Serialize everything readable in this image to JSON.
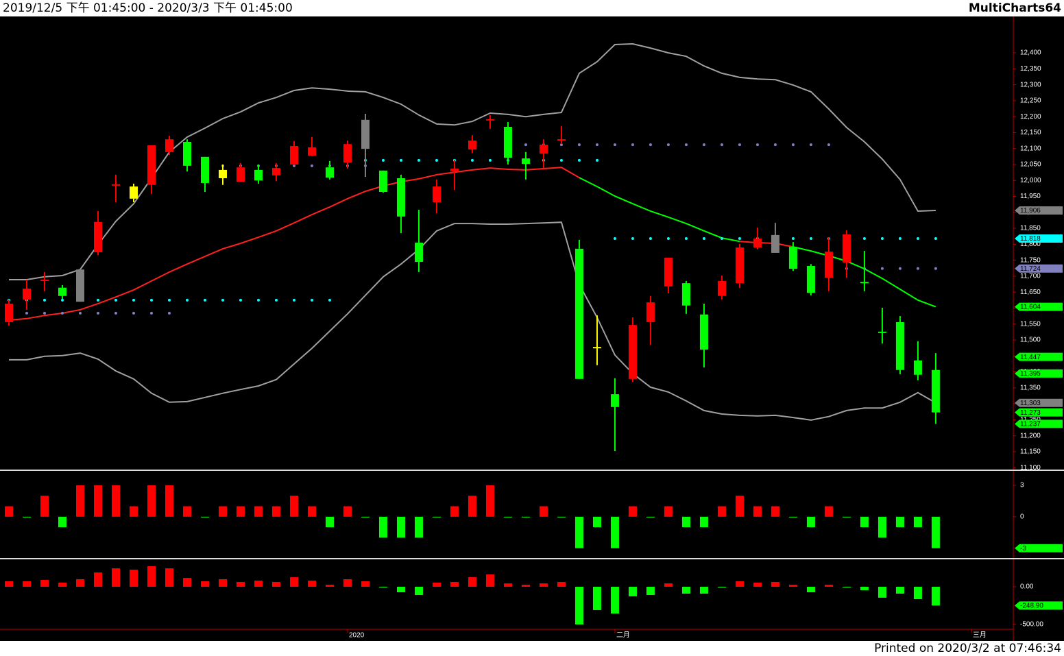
{
  "header": {
    "range": "2019/12/5 下午 01:45:00 - 2020/3/3 下午 01:45:00",
    "app": "MultiCharts64"
  },
  "footer": {
    "printed": "Printed on 2020/3/2 at 07:46:34"
  },
  "chart_data": [
    {
      "type": "candlestick",
      "xlim": [
        -0.5,
        56.35
      ],
      "xticks": [
        {
          "value": 19,
          "label": "2020"
        },
        {
          "value": 34,
          "label": "二月"
        },
        {
          "value": 54,
          "label": "三月"
        }
      ],
      "ylim": [
        11094,
        12514
      ],
      "yticks": [
        {
          "value": 11100,
          "label": "11,100"
        },
        {
          "value": 11150,
          "label": "11,150"
        },
        {
          "value": 11200,
          "label": "11,200"
        },
        {
          "value": 11250,
          "label": "11,250"
        },
        {
          "value": 11300,
          "label": "11,300"
        },
        {
          "value": 11350,
          "label": "11,350"
        },
        {
          "value": 11400,
          "label": "11,400"
        },
        {
          "value": 11450,
          "label": "11,450"
        },
        {
          "value": 11500,
          "label": "11,500"
        },
        {
          "value": 11550,
          "label": "11,550"
        },
        {
          "value": 11600,
          "label": "11,600"
        },
        {
          "value": 11650,
          "label": "11,650"
        },
        {
          "value": 11700,
          "label": "11,700"
        },
        {
          "value": 11750,
          "label": "11,750"
        },
        {
          "value": 11800,
          "label": "11,800"
        },
        {
          "value": 11850,
          "label": "11,850"
        },
        {
          "value": 11900,
          "label": "11,900"
        },
        {
          "value": 11950,
          "label": "11,950"
        },
        {
          "value": 12000,
          "label": "12,000"
        },
        {
          "value": 12050,
          "label": "12,050"
        },
        {
          "value": 12100,
          "label": "12,100"
        },
        {
          "value": 12150,
          "label": "12,150"
        },
        {
          "value": 12200,
          "label": "12,200"
        },
        {
          "value": 12250,
          "label": "12,250"
        },
        {
          "value": 12300,
          "label": "12,300"
        },
        {
          "value": 12350,
          "label": "12,350"
        },
        {
          "value": 12400,
          "label": "12,400"
        }
      ],
      "open": [
        11556,
        11627,
        11687,
        11664,
        11721,
        11775,
        11986,
        11981,
        11986,
        12089,
        12121,
        12074,
        12033,
        11996,
        12033,
        12016,
        12050,
        12078,
        12041,
        12056,
        12190,
        12031,
        12007,
        11805,
        11932,
        12028,
        12097,
        12190,
        12168,
        12069,
        12084,
        12127,
        11786,
        11476,
        11330,
        11378,
        11556,
        11668,
        11678,
        11580,
        11638,
        11678,
        11790,
        11829,
        11792,
        11732,
        11695,
        11743,
        11680,
        11524,
        11556,
        11436,
        11406
      ],
      "high": [
        11627,
        11689,
        11713,
        11672,
        11723,
        11904,
        12018,
        11990,
        12110,
        12140,
        12129,
        12074,
        12050,
        12054,
        12050,
        12054,
        12123,
        12136,
        12061,
        12125,
        12209,
        12031,
        12018,
        11908,
        12003,
        12065,
        12142,
        12205,
        12183,
        12089,
        12129,
        12170,
        11814,
        11577,
        11380,
        11571,
        11638,
        11758,
        11685,
        11614,
        11702,
        11801,
        11852,
        11867,
        11807,
        11738,
        11822,
        11844,
        11779,
        11601,
        11575,
        11496,
        11459
      ],
      "low": [
        11545,
        11595,
        11653,
        11629,
        11620,
        11766,
        11932,
        11932,
        11958,
        12080,
        12028,
        11964,
        11986,
        11996,
        11990,
        11998,
        12048,
        12076,
        12003,
        12037,
        12011,
        11962,
        11835,
        11713,
        11897,
        11970,
        12086,
        12162,
        12050,
        12003,
        12037,
        12114,
        11378,
        11421,
        11152,
        11369,
        11485,
        11646,
        11582,
        11414,
        11627,
        11663,
        11784,
        11773,
        11717,
        11640,
        11653,
        11695,
        11653,
        11489,
        11393,
        11374,
        11237
      ],
      "close": [
        11614,
        11661,
        11687,
        11638,
        11620,
        11870,
        11986,
        11943,
        12110,
        12129,
        12046,
        11992,
        12007,
        12041,
        12000,
        12039,
        12108,
        12104,
        12009,
        12114,
        12099,
        11964,
        11887,
        11745,
        11981,
        12037,
        12125,
        12190,
        12071,
        12052,
        12112,
        12127,
        11378,
        11476,
        11290,
        11547,
        11618,
        11758,
        11608,
        11470,
        11685,
        11790,
        11818,
        11773,
        11723,
        11648,
        11777,
        11831,
        11680,
        11524,
        11406,
        11391,
        11273
      ],
      "colors": [
        "#ff0000",
        "#ff0000",
        "#ff0000",
        "#00ff00",
        "#808080",
        "#ff0000",
        "#ff0000",
        "#ffff00",
        "#ff0000",
        "#ff0000",
        "#00ff00",
        "#00ff00",
        "#ffff00",
        "#ff0000",
        "#00ff00",
        "#ff0000",
        "#ff0000",
        "#ff0000",
        "#00ff00",
        "#ff0000",
        "#808080",
        "#00ff00",
        "#00ff00",
        "#00ff00",
        "#ff0000",
        "#ff0000",
        "#ff0000",
        "#ff0000",
        "#00ff00",
        "#00ff00",
        "#ff0000",
        "#ff0000",
        "#00ff00",
        "#ffff00",
        "#00ff00",
        "#ff0000",
        "#ff0000",
        "#ff0000",
        "#00ff00",
        "#00ff00",
        "#ff0000",
        "#ff0000",
        "#ff0000",
        "#808080",
        "#00ff00",
        "#00ff00",
        "#ff0000",
        "#ff0000",
        "#00ff00",
        "#00ff00",
        "#00ff00",
        "#00ff00",
        "#00ff00"
      ],
      "series": [
        {
          "color": "#a0a0a0",
          "style": "line",
          "values": [
            11689,
            11689,
            11698,
            11702,
            11721,
            11799,
            11872,
            11927,
            12007,
            12089,
            12136,
            12164,
            12194,
            12215,
            12243,
            12260,
            12282,
            12290,
            12286,
            12280,
            12278,
            12260,
            12239,
            12205,
            12177,
            12174,
            12185,
            12211,
            12207,
            12200,
            12207,
            12213,
            12336,
            12372,
            12426,
            12428,
            12415,
            12400,
            12389,
            12359,
            12336,
            12323,
            12318,
            12316,
            12299,
            12278,
            12224,
            12166,
            12121,
            12067,
            12003,
            11904,
            11906
          ]
        },
        {
          "color": "#a0a0a0",
          "style": "line",
          "values": [
            11438,
            11438,
            11449,
            11451,
            11459,
            11440,
            11403,
            11378,
            11333,
            11305,
            11307,
            11320,
            11333,
            11345,
            11356,
            11376,
            11425,
            11474,
            11528,
            11582,
            11640,
            11698,
            11738,
            11784,
            11842,
            11865,
            11865,
            11863,
            11863,
            11865,
            11867,
            11869,
            11674,
            11571,
            11453,
            11395,
            11352,
            11337,
            11309,
            11279,
            11268,
            11264,
            11262,
            11264,
            11257,
            11249,
            11260,
            11279,
            11287,
            11287,
            11305,
            11335,
            11303
          ]
        },
        {
          "color": "#ff2020",
          "style": "line",
          "values": [
            11562,
            11567,
            11577,
            11584,
            11595,
            11614,
            11635,
            11657,
            11685,
            11713,
            11738,
            11762,
            11786,
            11803,
            11822,
            11842,
            11867,
            11893,
            11917,
            11943,
            11966,
            11983,
            11996,
            12005,
            12018,
            12026,
            12033,
            12039,
            12035,
            12033,
            12037,
            12041,
            12009,
            null,
            null,
            null,
            null,
            null,
            null,
            null,
            null,
            11809,
            11805,
            11803,
            11792,
            null,
            null,
            null,
            null,
            null,
            null,
            null,
            null
          ]
        },
        {
          "color": "#00ff00",
          "style": "line",
          "values": [
            null,
            null,
            null,
            null,
            null,
            null,
            null,
            null,
            null,
            null,
            null,
            null,
            null,
            null,
            null,
            null,
            null,
            null,
            null,
            null,
            null,
            null,
            null,
            null,
            null,
            null,
            null,
            null,
            null,
            null,
            null,
            null,
            12009,
            11981,
            11951,
            11927,
            11904,
            11885,
            11865,
            11842,
            11820,
            11809,
            null,
            null,
            11792,
            11779,
            11764,
            11747,
            11723,
            11693,
            11659,
            11625,
            11604
          ]
        },
        {
          "color": "#00ffff",
          "style": "dots",
          "values": [
            11625,
            11625,
            11625,
            11625,
            11625,
            11625,
            11625,
            11625,
            11625,
            11625,
            11625,
            11625,
            11625,
            11625,
            11625,
            11625,
            11625,
            11625,
            11625,
            12063,
            12063,
            12063,
            12063,
            12063,
            12063,
            12063,
            12063,
            12063,
            12063,
            12063,
            12063,
            12063,
            12063,
            12063,
            11818,
            11818,
            11818,
            11818,
            11818,
            11818,
            11818,
            11818,
            11818,
            11818,
            11818,
            11818,
            11818,
            11818,
            11818,
            11818,
            11818,
            11818,
            11818
          ]
        },
        {
          "color": "#8080c0",
          "style": "dots",
          "values": [
            11584,
            11584,
            11584,
            11584,
            11584,
            11584,
            11584,
            11584,
            11584,
            11584,
            null,
            12046,
            12046,
            12046,
            12046,
            12046,
            12046,
            12046,
            12046,
            12046,
            12046,
            null,
            null,
            null,
            null,
            null,
            null,
            null,
            null,
            12112,
            12112,
            12112,
            12112,
            12112,
            12112,
            12112,
            12112,
            12112,
            12112,
            12112,
            12112,
            12112,
            12112,
            12112,
            12112,
            12112,
            12112,
            11724,
            11724,
            11724,
            11724,
            11724,
            11724
          ]
        }
      ],
      "markers": [
        {
          "value": 11906,
          "label": "11,906",
          "color": "#808080"
        },
        {
          "value": 11818,
          "label": "11,818",
          "color": "#00ffff"
        },
        {
          "value": 11724,
          "label": "11,724",
          "color": "#8080c0"
        },
        {
          "value": 11604,
          "label": "11,604",
          "color": "#00ff00"
        },
        {
          "value": 11447,
          "label": "11,447",
          "color": "#00ff00"
        },
        {
          "value": 11395,
          "label": "11,395",
          "color": "#00ff00"
        },
        {
          "value": 11303,
          "label": "11,303",
          "color": "#808080"
        },
        {
          "value": 11273,
          "label": "11,273",
          "color": "#00ff00"
        },
        {
          "value": 11237,
          "label": "11,237",
          "color": "#00ff00"
        }
      ]
    },
    {
      "type": "bar",
      "ylim": [
        -3.8,
        4.3
      ],
      "yticks": [
        3,
        0
      ],
      "up_color": "#ff0000",
      "down_color": "#00ff00",
      "values": [
        1,
        0,
        2,
        -1,
        3,
        3,
        3,
        1,
        3,
        3,
        1,
        0,
        1,
        1,
        1,
        1,
        2,
        1,
        -1,
        1,
        0,
        -2,
        -2,
        -2,
        0,
        1,
        2,
        3,
        0,
        0,
        1,
        0,
        -3,
        -1,
        -3,
        1,
        0,
        1,
        -1,
        -1,
        1,
        2,
        1,
        1,
        0,
        -1,
        1,
        0,
        -1,
        -2,
        -1,
        -1,
        -3
      ],
      "markers": [
        {
          "value": -3,
          "label": "-3",
          "color": "#00ff00"
        }
      ]
    },
    {
      "type": "bar",
      "ylim": [
        -555,
        355
      ],
      "yticks": [
        {
          "value": 0,
          "label": "0.00"
        },
        {
          "value": -500,
          "label": "-500.00"
        }
      ],
      "up_color": "#ff0000",
      "down_color": "#00ff00",
      "values": [
        73,
        73,
        91,
        55,
        100,
        190,
        245,
        227,
        273,
        245,
        118,
        73,
        100,
        64,
        82,
        64,
        127,
        82,
        27,
        100,
        73,
        -9,
        -73,
        -109,
        55,
        64,
        127,
        164,
        45,
        27,
        45,
        64,
        -500,
        -309,
        -355,
        -127,
        -109,
        45,
        -91,
        -91,
        -9,
        73,
        55,
        64,
        27,
        -73,
        27,
        -9,
        -45,
        -145,
        -91,
        -164,
        -248.9
      ],
      "markers": [
        {
          "value": -248.9,
          "label": "-248.90",
          "color": "#00ff00"
        }
      ]
    }
  ]
}
